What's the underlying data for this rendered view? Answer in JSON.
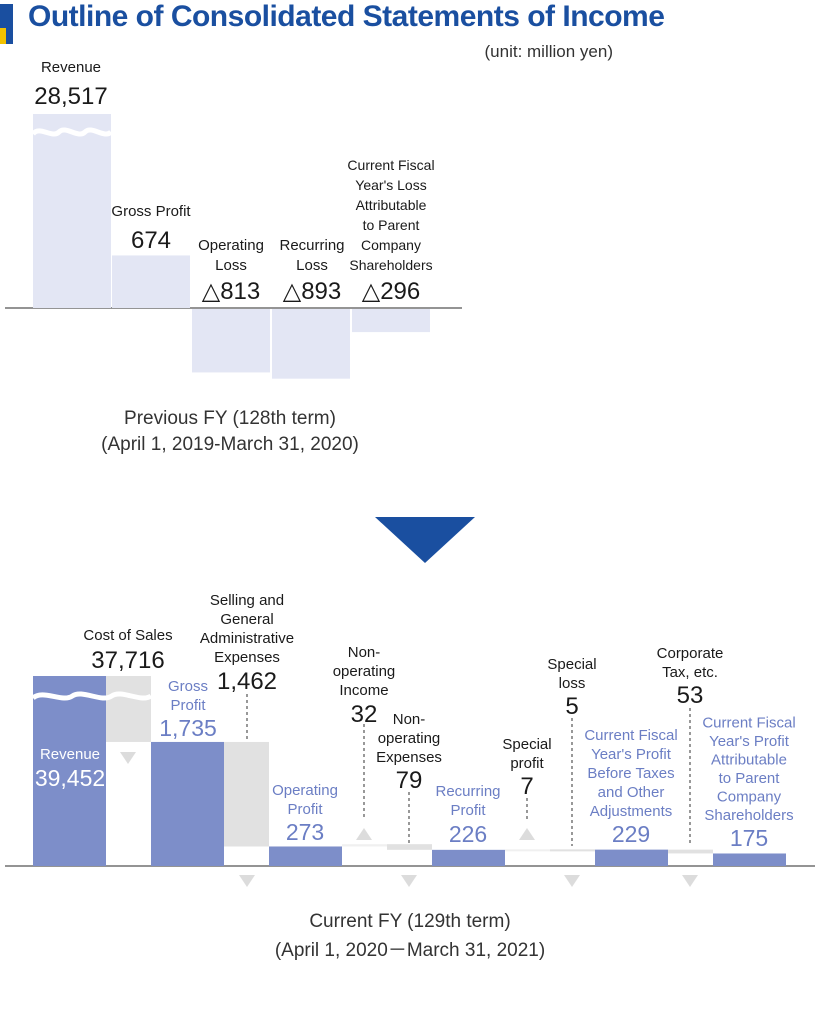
{
  "header": {
    "title": "Outline of Consolidated Statements of Income",
    "unit": "(unit: million yen)"
  },
  "colors": {
    "title": "#1a4fa0",
    "title_accent": "#f2c200",
    "prev_bar": "#e3e6f4",
    "current_bar": "#7d8ec9",
    "deduction_bar": "#e1e1e1",
    "arrow": "#1a4fa0",
    "current_label": "#6b7ec4"
  },
  "chart_data": [
    {
      "type": "bar",
      "panel": "previous",
      "categories": [
        "Revenue",
        "Gross Profit",
        "Operating Loss",
        "Recurring Loss",
        "Current Fiscal Year's Loss Attributable to Parent Company Shareholders"
      ],
      "values": [
        28517,
        674,
        -813,
        -893,
        -296
      ],
      "value_labels": [
        "28,517",
        "674",
        "△813",
        "△893",
        "△296"
      ],
      "caption_line1": "Previous FY (128th term)",
      "caption_line2": "(April 1, 2019-March 31, 2020)"
    },
    {
      "type": "waterfall",
      "panel": "current",
      "items": [
        {
          "label": "Revenue",
          "value": 39452,
          "display": "39,452",
          "kind": "total"
        },
        {
          "label": "Cost of Sales",
          "value": 37716,
          "display": "37,716",
          "kind": "decrease"
        },
        {
          "label": "Gross Profit",
          "value": 1735,
          "display": "1,735",
          "kind": "total"
        },
        {
          "label": "Selling and General Administrative Expenses",
          "value": 1462,
          "display": "1,462",
          "kind": "decrease"
        },
        {
          "label": "Operating Profit",
          "value": 273,
          "display": "273",
          "kind": "total"
        },
        {
          "label": "Non-operating Income",
          "value": 32,
          "display": "32",
          "kind": "increase"
        },
        {
          "label": "Non-operating Expenses",
          "value": 79,
          "display": "79",
          "kind": "decrease"
        },
        {
          "label": "Recurring Profit",
          "value": 226,
          "display": "226",
          "kind": "total"
        },
        {
          "label": "Special profit",
          "value": 7,
          "display": "7",
          "kind": "increase"
        },
        {
          "label": "Special loss",
          "value": 5,
          "display": "5",
          "kind": "decrease"
        },
        {
          "label": "Current Fiscal Year's Profit Before Taxes and Other Adjustments",
          "value": 229,
          "display": "229",
          "kind": "total"
        },
        {
          "label": "Corporate Tax, etc.",
          "value": 53,
          "display": "53",
          "kind": "decrease"
        },
        {
          "label": "Current Fiscal Year's Profit Attributable to Parent Company Shareholders",
          "value": 175,
          "display": "175",
          "kind": "total"
        }
      ],
      "caption_line1": "Current FY (129th term)",
      "caption_line2": "(April 1, 2020－March 31, 2021)"
    }
  ]
}
